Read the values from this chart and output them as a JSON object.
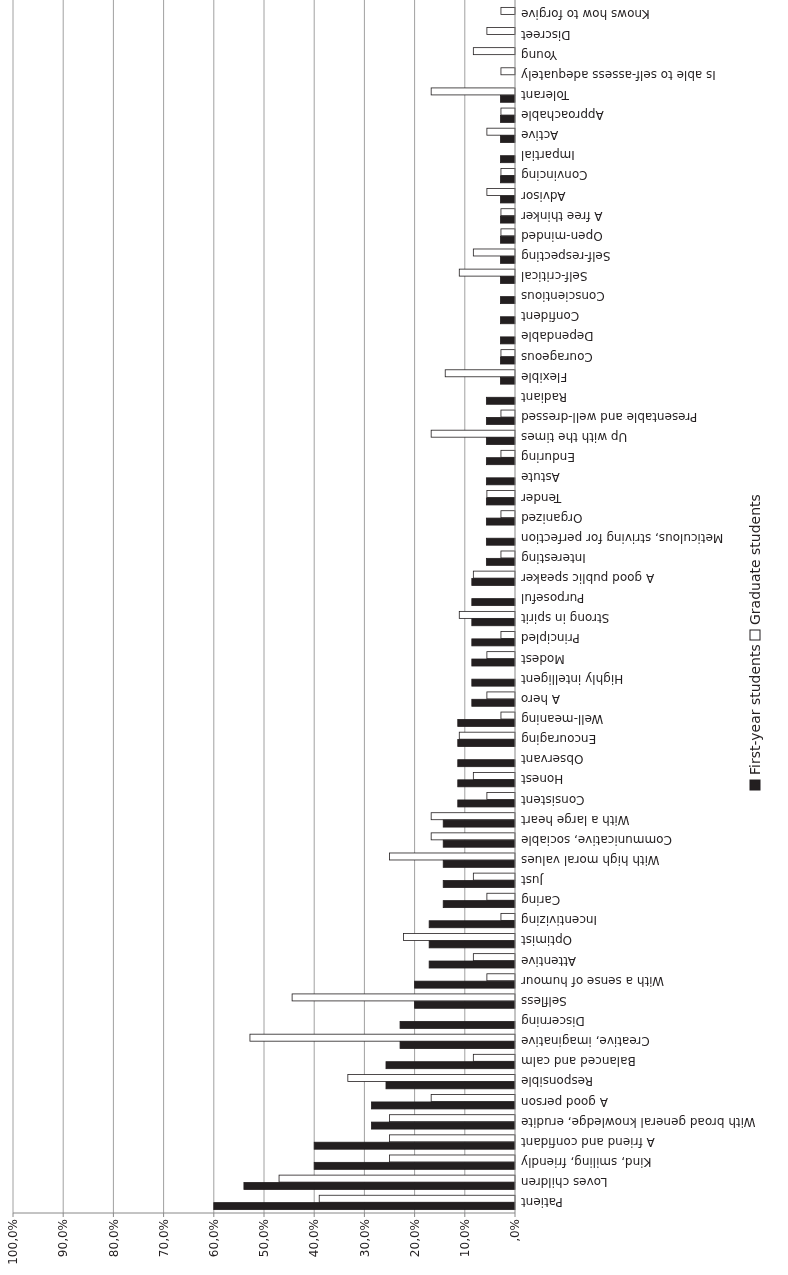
{
  "chart_data": {
    "type": "bar",
    "orientation": "horizontal",
    "categories": [
      "Knows how to forgive",
      "Discreet",
      "Young",
      "Is able to self-assess adequately",
      "Tolerant",
      "Approachable",
      "Active",
      "Impartial",
      "Convincing",
      "Advisor",
      "A free thinker",
      "Open-minded",
      "Self-respecting",
      "Self-critical",
      "Conscientious",
      "Confident",
      "Dependable",
      "Courageous",
      "Flexible",
      "Radiant",
      "Presentable and well-dressed",
      "Up with the times",
      "Enduring",
      "Astute",
      "Tender",
      "Organized",
      "Meticulous, striving for perfection",
      "Interesting",
      "A good public speaker",
      "Purposeful",
      "Strong in spirit",
      "Principled",
      "Modest",
      "Highly intelligent",
      "A hero",
      "Well-meaning",
      "Encouraging",
      "Observant",
      "Honest",
      "Consistent",
      "With a large heart",
      "Communicative, sociable",
      "With high moral values",
      "Just",
      "Caring",
      "Incentivizing",
      "Optimist",
      "Attentive",
      "With a sense of humour",
      "Selfless",
      "Discerning",
      "Creative, imaginative",
      "Balanced and calm",
      "Responsible",
      "A good person",
      "With broad general knowledge, erudite",
      "A friend and confidant",
      "Kind, smiling, friendly",
      "Loves children",
      "Patient"
    ],
    "series": [
      {
        "name": "Graduate students",
        "color": "#ffffff",
        "values": [
          2.8,
          5.6,
          8.3,
          2.8,
          16.7,
          2.8,
          5.6,
          0,
          2.8,
          5.6,
          2.8,
          2.8,
          8.3,
          11.1,
          0,
          0,
          0,
          2.8,
          13.9,
          0,
          2.8,
          16.7,
          2.8,
          0,
          5.6,
          2.8,
          0,
          2.8,
          8.3,
          0,
          11.1,
          2.8,
          5.6,
          0,
          5.6,
          2.8,
          11.1,
          0,
          8.3,
          5.6,
          16.7,
          16.7,
          25,
          8.3,
          5.6,
          2.8,
          22.2,
          8.3,
          5.6,
          44.4,
          0,
          52.8,
          8.3,
          33.3,
          16.7,
          25,
          25,
          25,
          47,
          39
        ]
      },
      {
        "name": "First-year students",
        "color": "#231f20",
        "values": [
          0,
          0,
          0,
          0,
          2.9,
          2.9,
          2.9,
          2.9,
          2.9,
          2.9,
          2.9,
          2.9,
          2.9,
          2.9,
          2.9,
          2.9,
          2.9,
          2.9,
          2.9,
          5.7,
          5.7,
          5.7,
          5.7,
          5.7,
          5.7,
          5.7,
          5.7,
          5.7,
          8.6,
          8.6,
          8.6,
          8.6,
          8.6,
          8.6,
          8.6,
          11.4,
          11.4,
          11.4,
          11.4,
          11.4,
          14.3,
          14.3,
          14.3,
          14.3,
          14.3,
          17.1,
          17.1,
          17.1,
          20,
          20,
          22.9,
          22.9,
          25.7,
          25.7,
          28.6,
          28.6,
          40,
          40,
          54,
          60
        ]
      }
    ],
    "xlim": [
      100,
      0
    ],
    "xticks": [
      {
        "value": 100,
        "label": "100,0%"
      },
      {
        "value": 90,
        "label": "90,0%"
      },
      {
        "value": 80,
        "label": "80,0%"
      },
      {
        "value": 70,
        "label": "70,0%"
      },
      {
        "value": 60,
        "label": "60,0%"
      },
      {
        "value": 50,
        "label": "50,0%"
      },
      {
        "value": 40,
        "label": "40,0%"
      },
      {
        "value": 30,
        "label": "30,0%"
      },
      {
        "value": 20,
        "label": "20,0%"
      },
      {
        "value": 10,
        "label": "10,0%"
      },
      {
        "value": 0,
        "label": ",0%"
      }
    ],
    "grid": "x",
    "legend": "right"
  }
}
